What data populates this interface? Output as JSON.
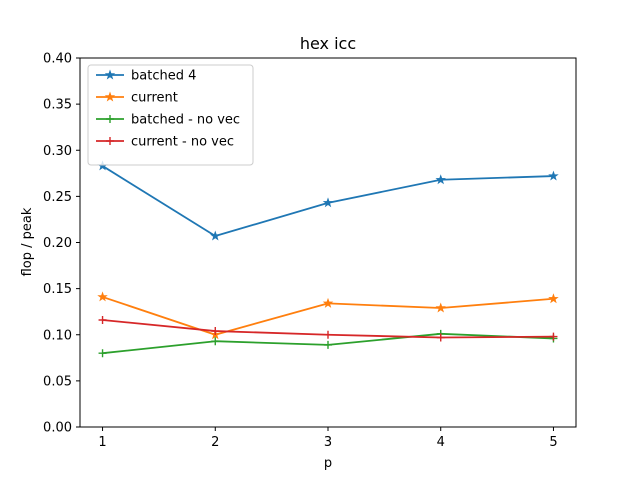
{
  "chart_data": {
    "type": "line",
    "title": "hex icc",
    "xlabel": "p",
    "ylabel": "flop / peak",
    "xlim": [
      0.8,
      5.2
    ],
    "ylim": [
      0.0,
      0.4
    ],
    "x": [
      1,
      2,
      3,
      4,
      5
    ],
    "xticks": [
      "1",
      "2",
      "3",
      "4",
      "5"
    ],
    "yticks": [
      "0.00",
      "0.05",
      "0.10",
      "0.15",
      "0.20",
      "0.25",
      "0.30",
      "0.35",
      "0.40"
    ],
    "grid": false,
    "legend_position": "top-left",
    "series": [
      {
        "name": "batched 4",
        "values": [
          0.283,
          0.207,
          0.243,
          0.268,
          0.272
        ],
        "color": "#1f77b4",
        "marker": "star"
      },
      {
        "name": "current",
        "values": [
          0.141,
          0.1,
          0.134,
          0.129,
          0.139
        ],
        "color": "#ff7f0e",
        "marker": "star"
      },
      {
        "name": "batched - no vec",
        "values": [
          0.08,
          0.093,
          0.089,
          0.101,
          0.096
        ],
        "color": "#2ca02c",
        "marker": "plus"
      },
      {
        "name": "current - no vec",
        "values": [
          0.116,
          0.104,
          0.1,
          0.097,
          0.098
        ],
        "color": "#d62728",
        "marker": "plus"
      }
    ]
  }
}
